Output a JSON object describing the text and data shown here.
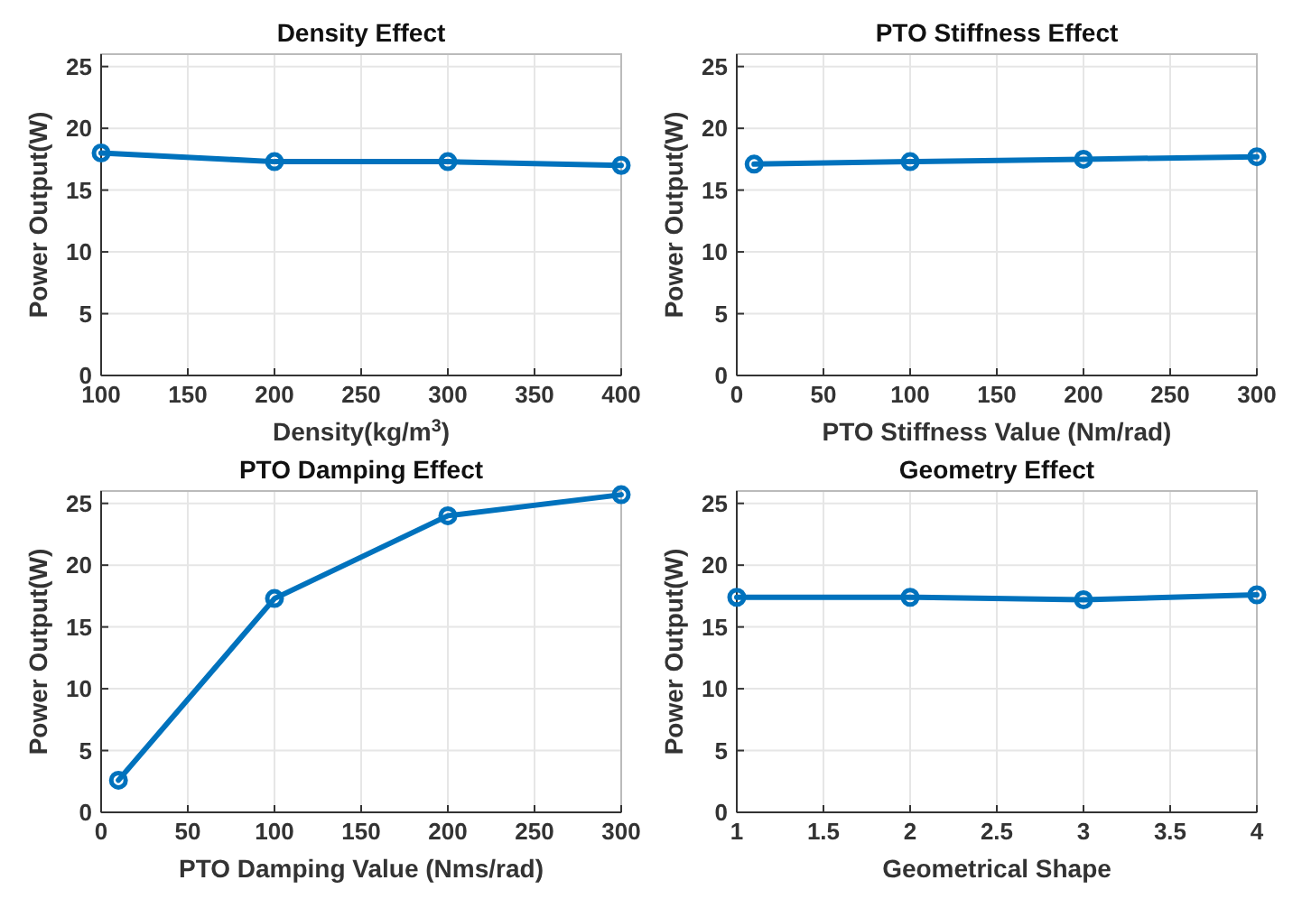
{
  "chart_data": [
    {
      "type": "line",
      "title": "Density Effect",
      "xlabel": "Density(kg/m$^{3}$)",
      "ylabel": "Power Output(W)",
      "x": [
        100,
        200,
        300,
        400
      ],
      "series": [
        {
          "color": "#0072bd",
          "values": [
            18.0,
            17.3,
            17.3,
            17.0
          ]
        }
      ],
      "xlim": [
        100,
        400
      ],
      "xticks": [
        100,
        150,
        200,
        250,
        300,
        350,
        400
      ],
      "ylim": [
        0,
        26
      ],
      "yticks": [
        0,
        5,
        10,
        15,
        20,
        25
      ],
      "grid": true,
      "marker": "circle",
      "line_style": "solid"
    },
    {
      "type": "line",
      "title": "PTO Stiffness Effect",
      "xlabel": "PTO Stiffness Value (Nm/rad)",
      "ylabel": "Power Output(W)",
      "x": [
        10,
        100,
        200,
        300
      ],
      "series": [
        {
          "color": "#0072bd",
          "values": [
            17.1,
            17.3,
            17.5,
            17.7
          ]
        }
      ],
      "xlim": [
        0,
        300
      ],
      "xticks": [
        0,
        50,
        100,
        150,
        200,
        250,
        300
      ],
      "ylim": [
        0,
        26
      ],
      "yticks": [
        0,
        5,
        10,
        15,
        20,
        25
      ],
      "grid": true,
      "marker": "circle",
      "line_style": "solid"
    },
    {
      "type": "line",
      "title": "PTO Damping Effect",
      "xlabel": "PTO Damping Value (Nms/rad)",
      "ylabel": "Power Output(W)",
      "x": [
        10,
        100,
        200,
        300
      ],
      "series": [
        {
          "color": "#0072bd",
          "values": [
            2.6,
            17.3,
            24.0,
            25.7
          ]
        }
      ],
      "xlim": [
        0,
        300
      ],
      "xticks": [
        0,
        50,
        100,
        150,
        200,
        250,
        300
      ],
      "ylim": [
        0,
        26
      ],
      "yticks": [
        0,
        5,
        10,
        15,
        20,
        25
      ],
      "grid": true,
      "marker": "circle",
      "line_style": "solid"
    },
    {
      "type": "line",
      "title": "Geometry Effect",
      "xlabel": "Geometrical Shape",
      "ylabel": "Power Output(W)",
      "x": [
        1,
        2,
        3,
        4
      ],
      "series": [
        {
          "color": "#0072bd",
          "values": [
            17.4,
            17.4,
            17.2,
            17.6
          ]
        }
      ],
      "xlim": [
        1,
        4
      ],
      "xticks": [
        1,
        1.5,
        2,
        2.5,
        3,
        3.5,
        4
      ],
      "ylim": [
        0,
        26
      ],
      "yticks": [
        0,
        5,
        10,
        15,
        20,
        25
      ],
      "grid": true,
      "marker": "circle",
      "line_style": "solid"
    }
  ]
}
